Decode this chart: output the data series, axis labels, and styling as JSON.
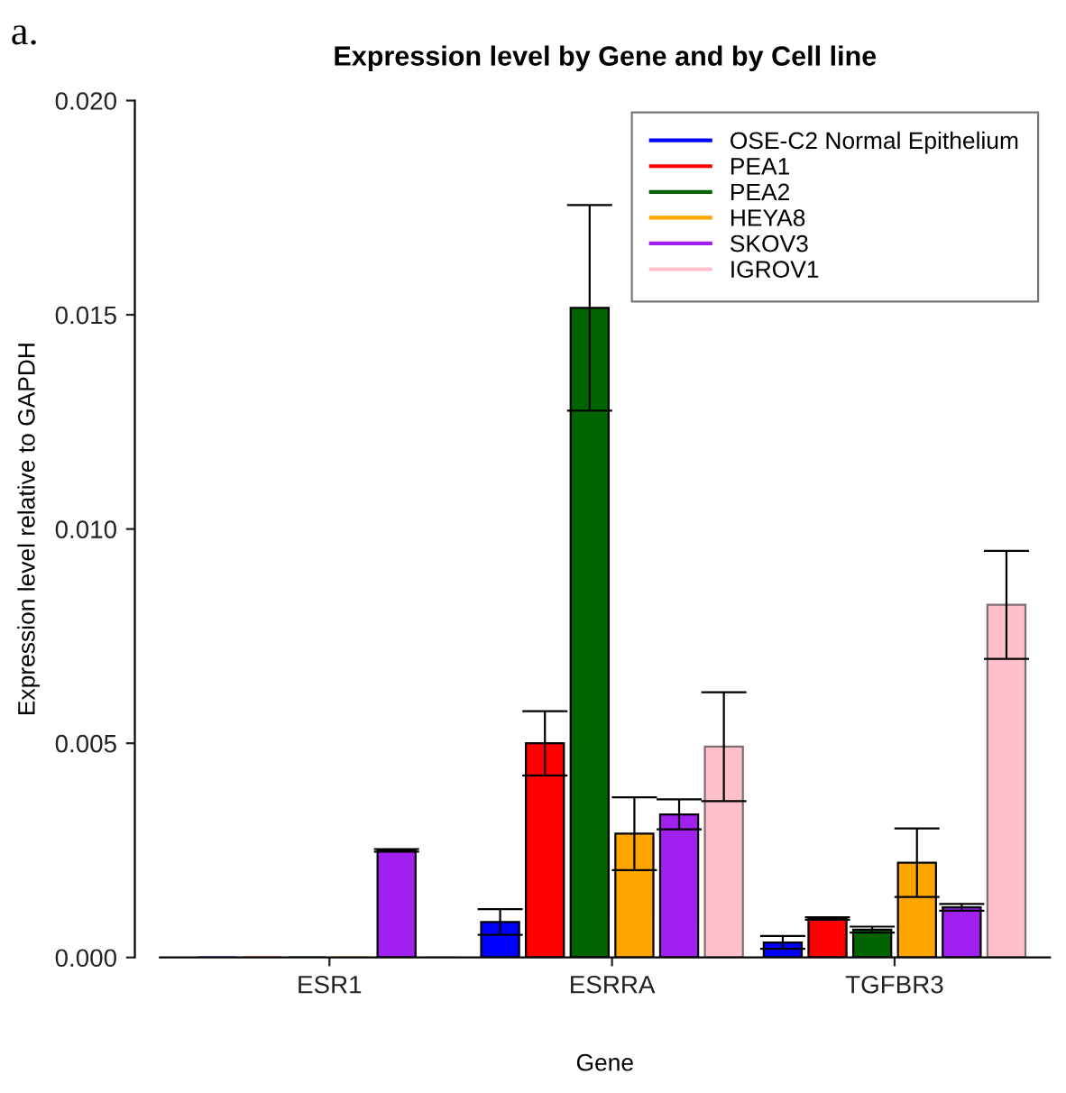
{
  "chart_data": {
    "type": "bar",
    "title": "Expression level by Gene and by Cell line",
    "xlabel": "Gene",
    "ylabel": "Expression level relative to GAPDH",
    "annotations": [
      "a."
    ],
    "categories": [
      "ESR1",
      "ESRRA",
      "TGFBR3"
    ],
    "series": [
      {
        "name": "OSE-C2 Normal Epithelium",
        "color": "#0000ff",
        "values": [
          0,
          0.00083,
          0.00035
        ],
        "errors": [
          null,
          0.0003,
          0.00015
        ]
      },
      {
        "name": "PEA1",
        "color": "#ff0000",
        "values": [
          0,
          0.005,
          0.00091
        ],
        "errors": [
          null,
          0.00075,
          3e-05
        ]
      },
      {
        "name": "PEA2",
        "color": "#006400",
        "values": [
          0,
          0.01516,
          0.00065
        ],
        "errors": [
          null,
          0.0024,
          7e-05
        ]
      },
      {
        "name": "HEYA8",
        "color": "#ffa500",
        "values": [
          0,
          0.00289,
          0.00221
        ],
        "errors": [
          null,
          0.00085,
          0.0008
        ]
      },
      {
        "name": "SKOV3",
        "color": "#a020f0",
        "values": [
          0.0025,
          0.00334,
          0.00117
        ],
        "errors": [
          3e-05,
          0.00035,
          8e-05
        ]
      },
      {
        "name": "IGROV1",
        "color": "#ffc0cb",
        "values": [
          0,
          0.00492,
          0.00823
        ],
        "errors": [
          null,
          0.00127,
          0.00126
        ]
      }
    ],
    "ylim": [
      0,
      0.02
    ],
    "yticks": [
      {
        "value": 0,
        "label": "0.000"
      },
      {
        "value": 0.005,
        "label": "0.005"
      },
      {
        "value": 0.01,
        "label": "0.010"
      },
      {
        "value": 0.015,
        "label": "0.015"
      },
      {
        "value": 0.02,
        "label": "0.020"
      }
    ],
    "legend": "top right",
    "grid": false
  }
}
